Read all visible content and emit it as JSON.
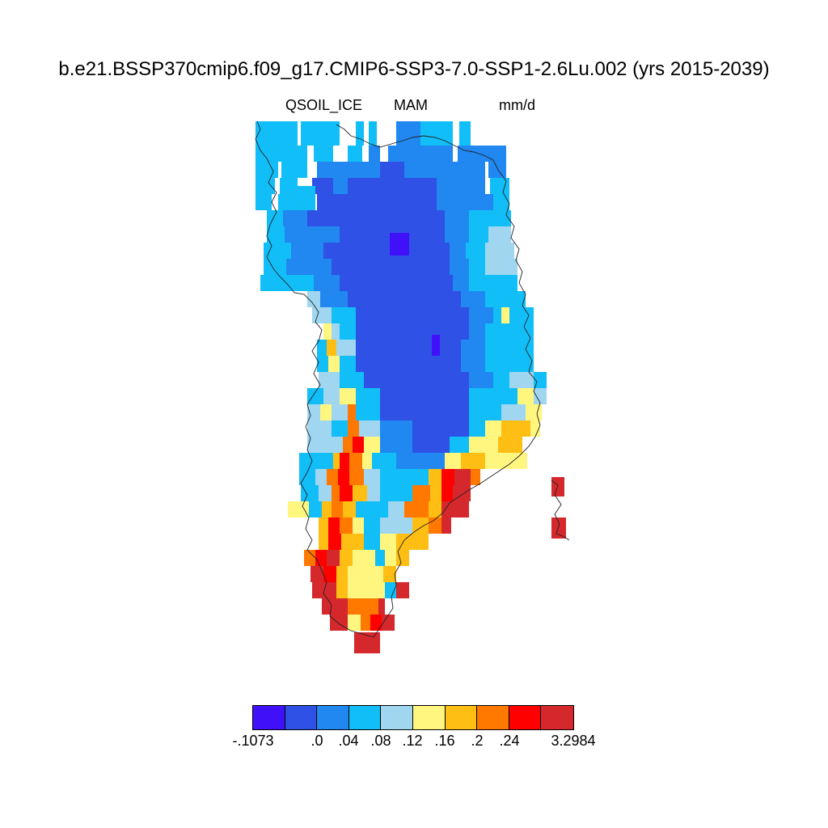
{
  "title": "b.e21.BSSP370cmip6.f09_g17.CMIP6-SSP3-7.0-SSP1-2.6Lu.002 (yrs 2015-2039)",
  "variable": "QSOIL_ICE",
  "season": "MAM",
  "units": "mm/d",
  "colorbar": {
    "colors": [
      "#4010f8",
      "#2f51e6",
      "#2088f0",
      "#12bef8",
      "#a0d6f0",
      "#fff680",
      "#ffbe14",
      "#ff7800",
      "#ff0000",
      "#d4282c"
    ],
    "tick_labels": [
      "-.1073",
      ".0",
      ".04",
      ".08",
      ".12",
      ".16",
      ".2",
      ".24",
      "3.2984"
    ]
  }
}
